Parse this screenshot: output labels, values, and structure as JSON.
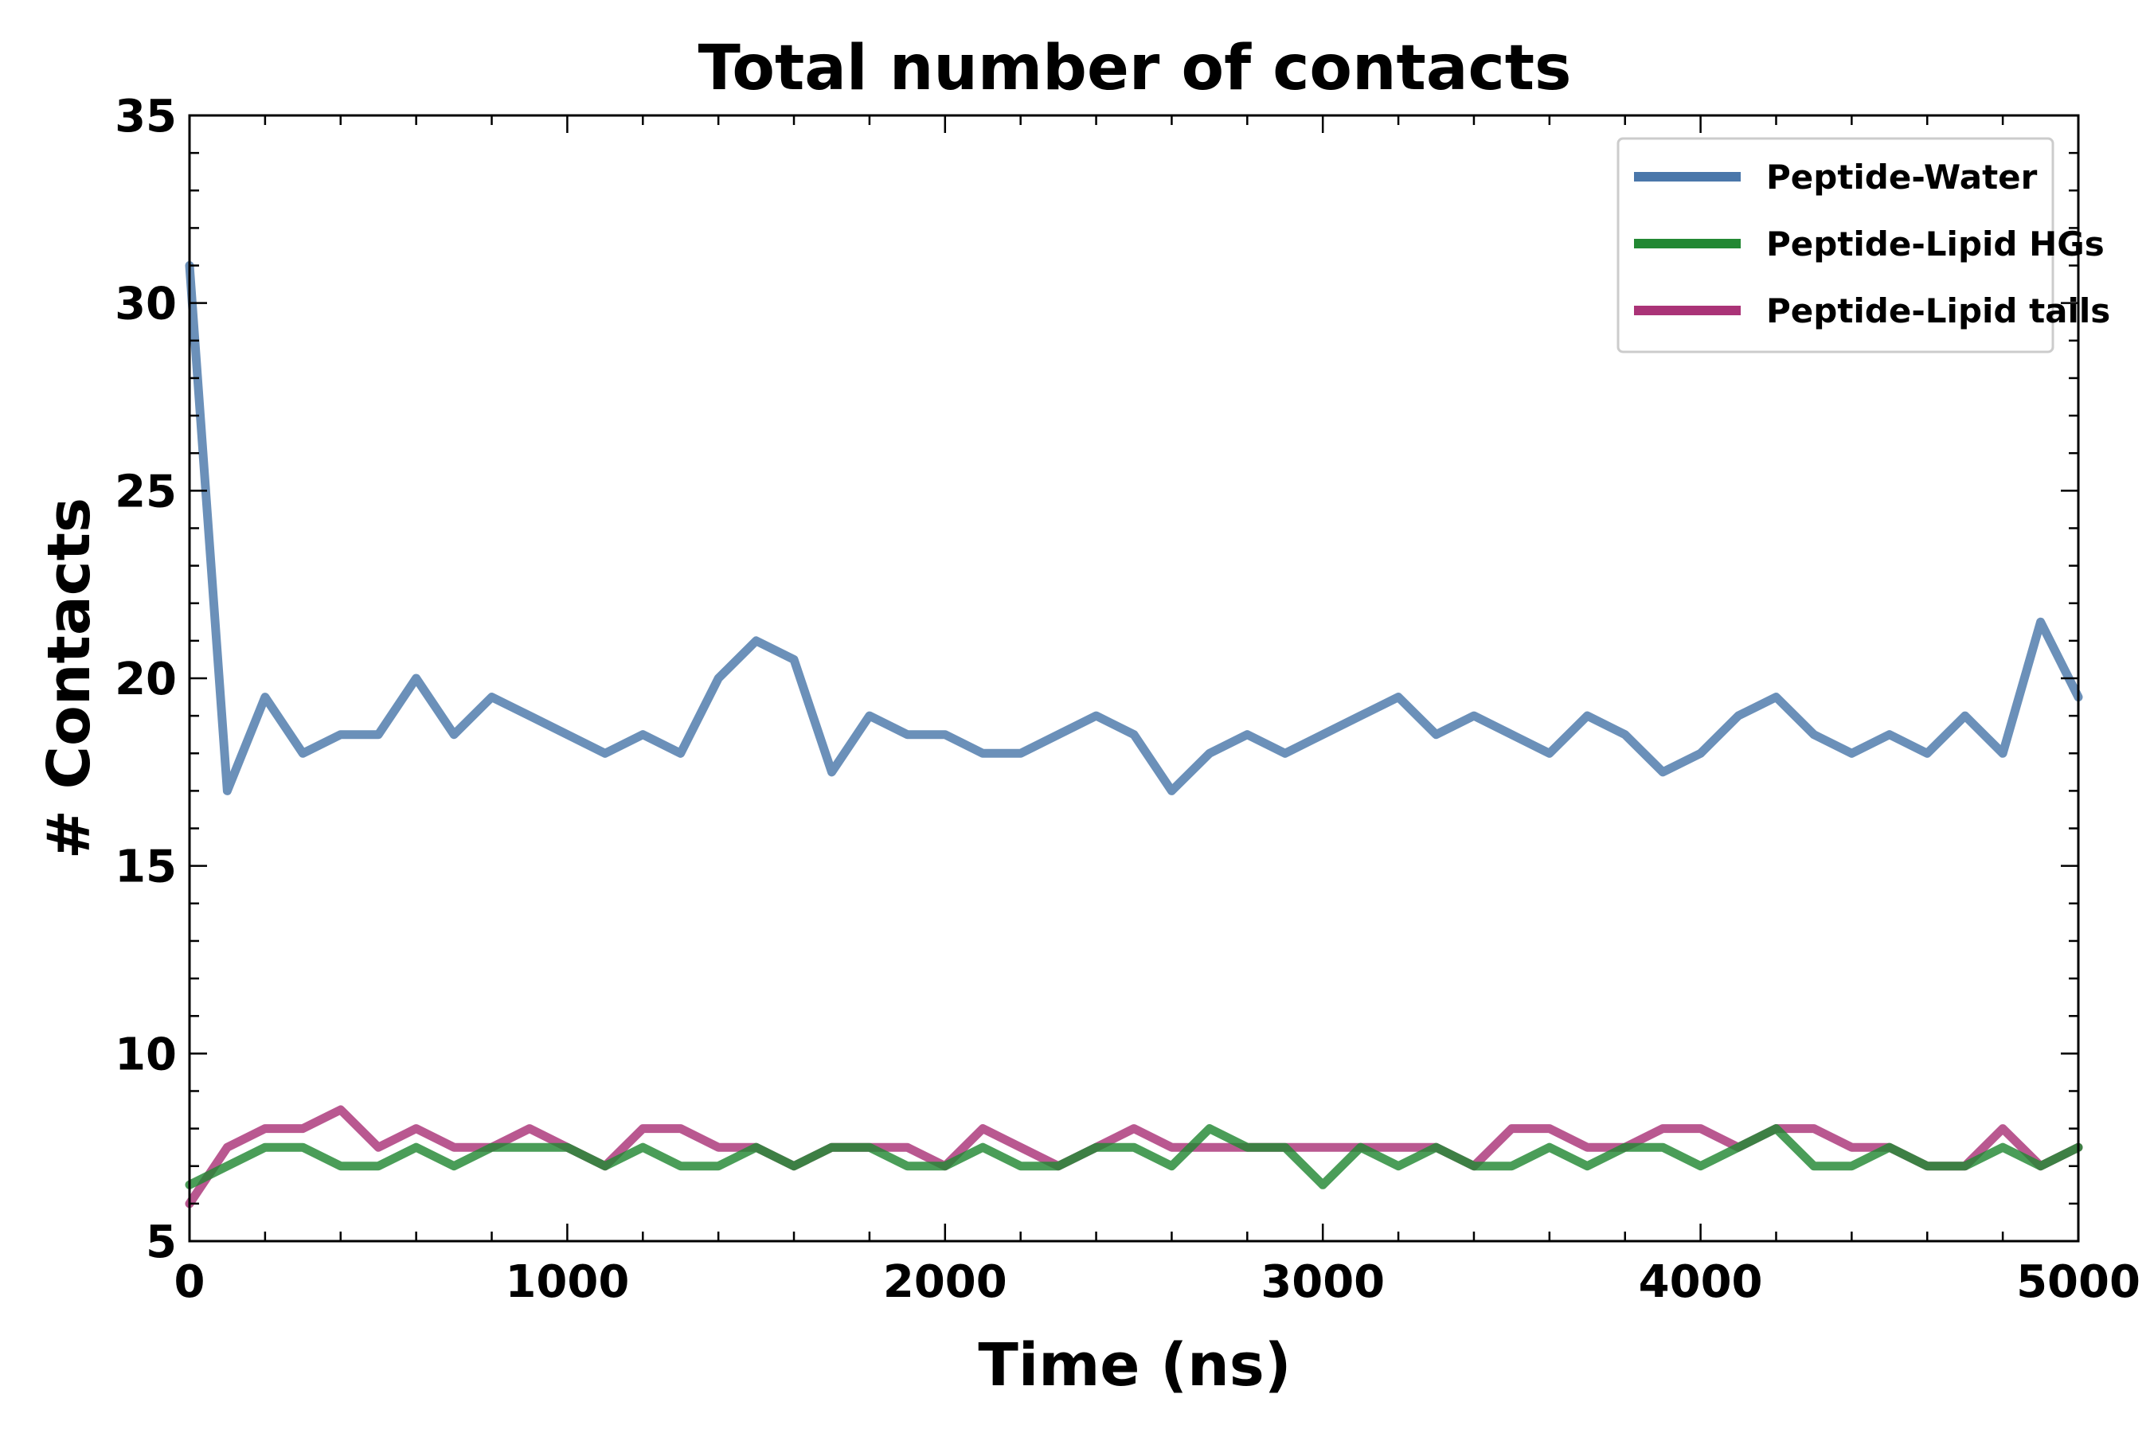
{
  "chart_data": {
    "type": "line",
    "title": "Total number of contacts",
    "xlabel": "Time (ns)",
    "ylabel": "# Contacts",
    "xlim": [
      0,
      5000
    ],
    "ylim": [
      5,
      35
    ],
    "x_ticks": [
      "0",
      "1000",
      "2000",
      "3000",
      "4000",
      "5000"
    ],
    "y_ticks": [
      "5",
      "10",
      "15",
      "20",
      "25",
      "30",
      "35"
    ],
    "grid": false,
    "legend_position": "top-right",
    "x": [
      0,
      100,
      200,
      300,
      400,
      500,
      600,
      700,
      800,
      900,
      1000,
      1100,
      1200,
      1300,
      1400,
      1500,
      1600,
      1700,
      1800,
      1900,
      2000,
      2100,
      2200,
      2300,
      2400,
      2500,
      2600,
      2700,
      2800,
      2900,
      3000,
      3100,
      3200,
      3300,
      3400,
      3500,
      3600,
      3700,
      3800,
      3900,
      4000,
      4100,
      4200,
      4300,
      4400,
      4500,
      4600,
      4700,
      4800,
      4900,
      5000
    ],
    "series": [
      {
        "name": "Peptide-Water",
        "color": "#4a77aa",
        "values": [
          31.0,
          17.0,
          19.5,
          18.0,
          18.5,
          18.5,
          20.0,
          18.5,
          19.5,
          19.0,
          18.5,
          18.0,
          18.5,
          18.0,
          20.0,
          21.0,
          20.5,
          17.5,
          19.0,
          18.5,
          18.5,
          18.0,
          18.0,
          18.5,
          19.0,
          18.5,
          17.0,
          18.0,
          18.5,
          18.0,
          18.5,
          19.0,
          19.5,
          18.5,
          19.0,
          18.5,
          18.0,
          19.0,
          18.5,
          17.5,
          18.0,
          19.0,
          19.5,
          18.5,
          18.0,
          18.5,
          18.0,
          19.0,
          18.0,
          21.5,
          19.5
        ]
      },
      {
        "name": "Peptide-Lipid HGs",
        "color": "#228833",
        "values": [
          6.5,
          7.0,
          7.5,
          7.5,
          7.0,
          7.0,
          7.5,
          7.0,
          7.5,
          7.5,
          7.5,
          7.0,
          7.5,
          7.0,
          7.0,
          7.5,
          7.0,
          7.5,
          7.5,
          7.0,
          7.0,
          7.5,
          7.0,
          7.0,
          7.5,
          7.5,
          7.0,
          8.0,
          7.5,
          7.5,
          6.5,
          7.5,
          7.0,
          7.5,
          7.0,
          7.0,
          7.5,
          7.0,
          7.5,
          7.5,
          7.0,
          7.5,
          8.0,
          7.0,
          7.0,
          7.5,
          7.0,
          7.0,
          7.5,
          7.0,
          7.5
        ]
      },
      {
        "name": "Peptide-Lipid tails",
        "color": "#aa3377",
        "values": [
          6.0,
          7.5,
          8.0,
          8.0,
          8.5,
          7.5,
          8.0,
          7.5,
          7.5,
          8.0,
          7.5,
          7.0,
          8.0,
          8.0,
          7.5,
          7.5,
          7.0,
          7.5,
          7.5,
          7.5,
          7.0,
          8.0,
          7.5,
          7.0,
          7.5,
          8.0,
          7.5,
          7.5,
          7.5,
          7.5,
          7.5,
          7.5,
          7.5,
          7.5,
          7.0,
          8.0,
          8.0,
          7.5,
          7.5,
          8.0,
          8.0,
          7.5,
          8.0,
          8.0,
          7.5,
          7.5,
          7.0,
          7.0,
          8.0,
          7.0,
          7.5
        ]
      }
    ]
  }
}
